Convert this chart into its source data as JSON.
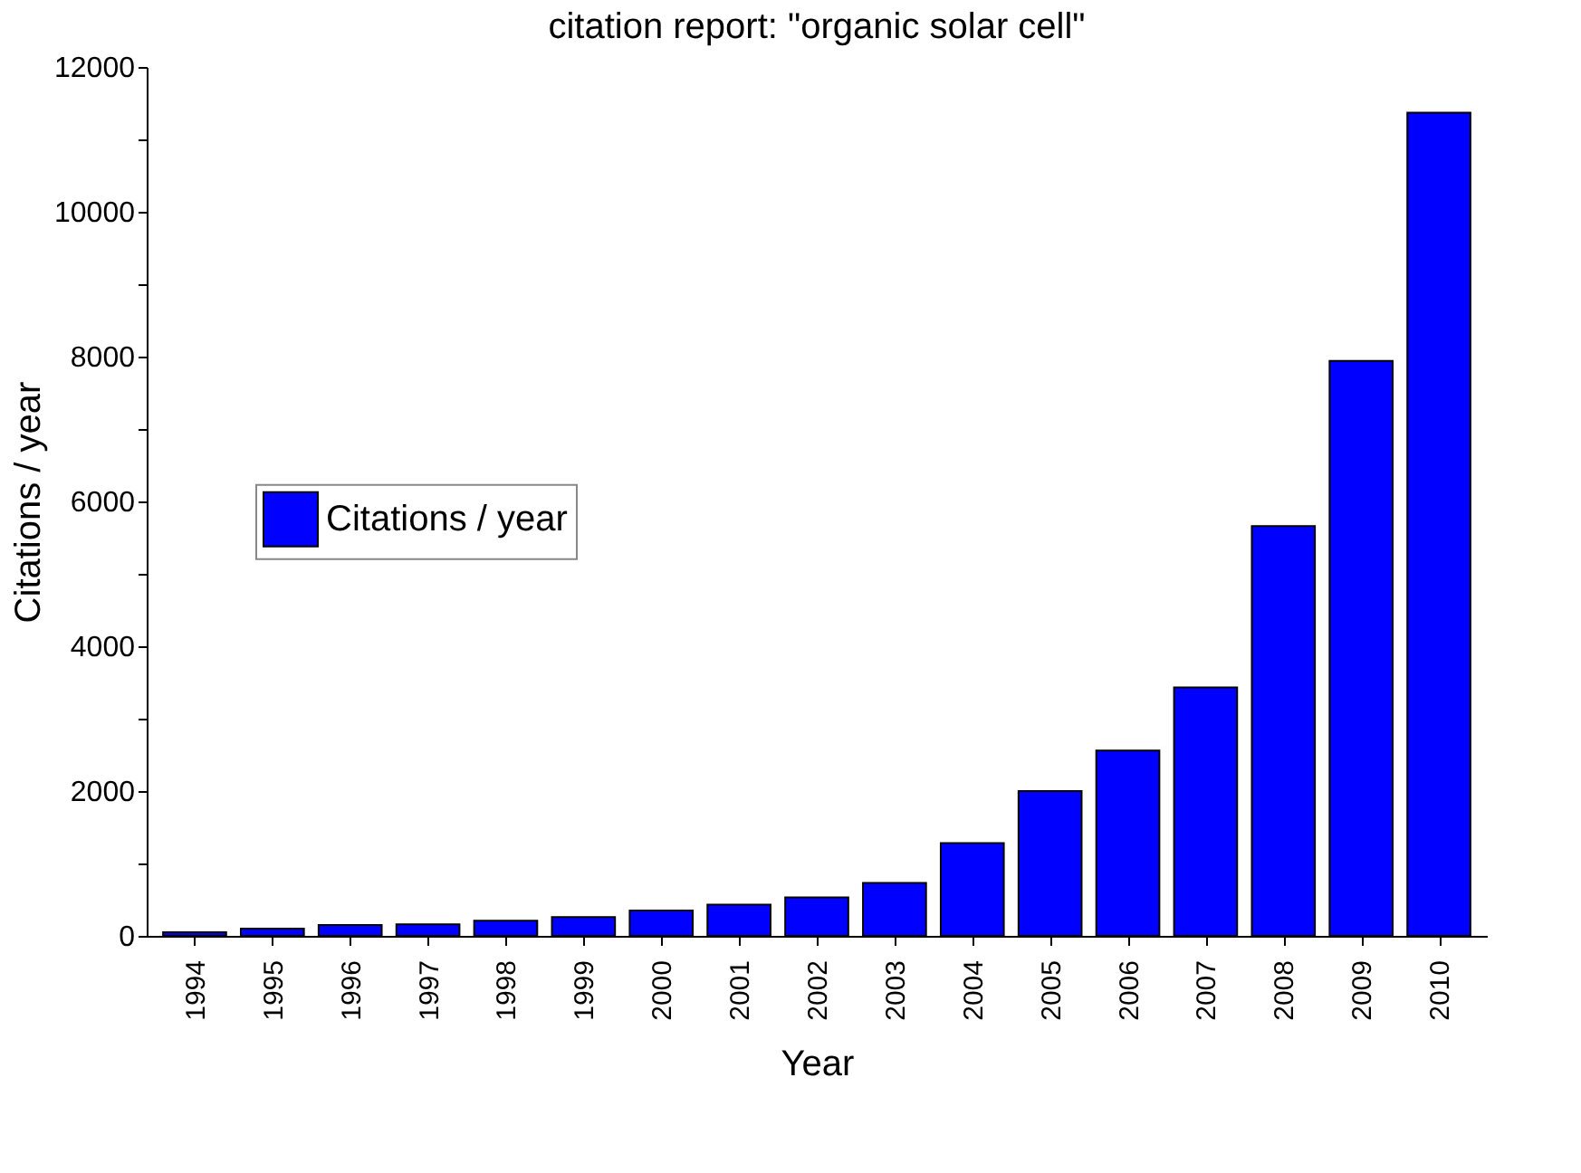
{
  "chart_data": {
    "type": "bar",
    "title": "citation report: \"organic solar cell\"",
    "xlabel": "Year",
    "ylabel": "Citations / year",
    "categories": [
      "1994",
      "1995",
      "1996",
      "1997",
      "1998",
      "1999",
      "2000",
      "2001",
      "2002",
      "2003",
      "2004",
      "2005",
      "2006",
      "2007",
      "2008",
      "2009",
      "2010"
    ],
    "series": [
      {
        "name": "Citations / year",
        "color": "#0000ff",
        "values": [
          50,
          100,
          150,
          160,
          210,
          260,
          350,
          430,
          530,
          730,
          1280,
          2000,
          2560,
          3430,
          5660,
          7940,
          11370
        ]
      }
    ],
    "ylim": [
      0,
      12000
    ],
    "yticks": [
      0,
      {
        "value": 1000,
        "label": null
      },
      2000,
      {
        "value": 3000,
        "label": null
      },
      4000,
      {
        "value": 5000,
        "label": null
      },
      6000,
      {
        "value": 7000,
        "label": null
      },
      8000,
      {
        "value": 9000,
        "label": null
      },
      10000,
      {
        "value": 11000,
        "label": null
      },
      12000
    ],
    "grid": false,
    "legend": "left"
  }
}
